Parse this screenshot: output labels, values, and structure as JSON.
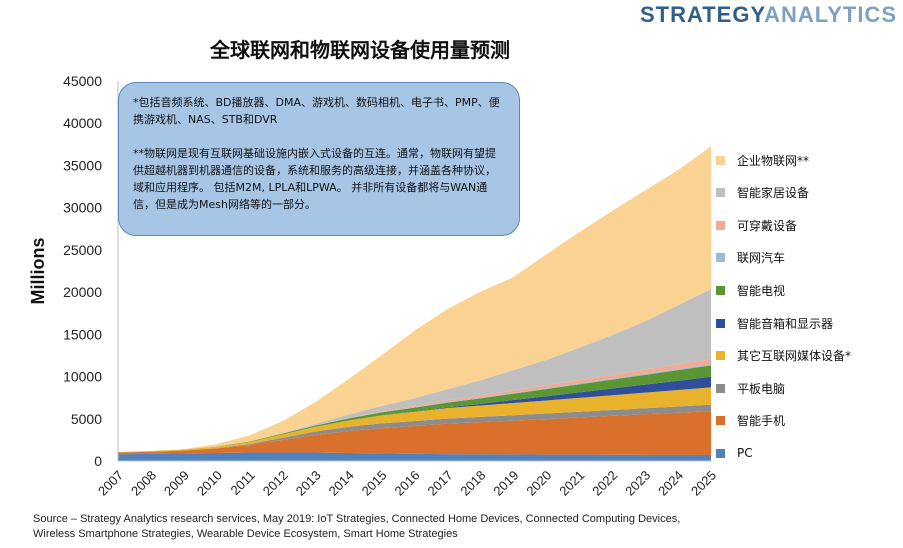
{
  "brand": {
    "part1": "STRATEGY",
    "part2": "ANALYTICS"
  },
  "chart_data": {
    "type": "area",
    "title": "全球联网和物联网设备使用量预测",
    "xlabel": "",
    "ylabel": "Millions",
    "ylim": [
      0,
      45000
    ],
    "yticks": [
      0,
      5000,
      10000,
      15000,
      20000,
      25000,
      30000,
      35000,
      40000,
      45000
    ],
    "categories": [
      "2007",
      "2008",
      "2009",
      "2010",
      "2011",
      "2012",
      "2013",
      "2014",
      "2015",
      "2016",
      "2017",
      "2018",
      "2019",
      "2020",
      "2021",
      "2022",
      "2023",
      "2024",
      "2025"
    ],
    "series": [
      {
        "name": "PC",
        "color": "#4f81bd",
        "values": [
          800,
          850,
          900,
          950,
          1000,
          1000,
          1000,
          950,
          900,
          850,
          820,
          800,
          780,
          760,
          750,
          740,
          730,
          720,
          710
        ]
      },
      {
        "name": "智能手机",
        "color": "#d9702b",
        "values": [
          200,
          250,
          350,
          550,
          900,
          1500,
          2100,
          2600,
          3000,
          3300,
          3600,
          3800,
          4000,
          4200,
          4400,
          4600,
          4800,
          5000,
          5200
        ]
      },
      {
        "name": "平板电脑",
        "color": "#8c8c8c",
        "values": [
          0,
          0,
          0,
          20,
          100,
          250,
          400,
          500,
          550,
          580,
          600,
          620,
          640,
          660,
          680,
          700,
          720,
          740,
          760
        ]
      },
      {
        "name": "其它互联网媒体设备*",
        "color": "#e8b22d",
        "values": [
          60,
          80,
          100,
          150,
          250,
          400,
          550,
          750,
          950,
          1100,
          1250,
          1350,
          1450,
          1550,
          1650,
          1750,
          1850,
          1950,
          2050
        ]
      },
      {
        "name": "智能音箱和显示器",
        "color": "#2f4f9a",
        "values": [
          0,
          0,
          0,
          0,
          0,
          0,
          0,
          0,
          10,
          40,
          100,
          200,
          350,
          500,
          650,
          800,
          950,
          1100,
          1250
        ]
      },
      {
        "name": "智能电视",
        "color": "#5c9634",
        "values": [
          0,
          0,
          10,
          30,
          60,
          100,
          150,
          250,
          350,
          450,
          550,
          650,
          750,
          850,
          950,
          1050,
          1150,
          1250,
          1350
        ]
      },
      {
        "name": "联网汽车",
        "color": "#9dbbd9",
        "values": [
          0,
          0,
          0,
          0,
          10,
          20,
          30,
          40,
          50,
          60,
          70,
          80,
          90,
          100,
          110,
          120,
          130,
          140,
          150
        ]
      },
      {
        "name": "可穿戴设备",
        "color": "#f0ab95",
        "values": [
          0,
          0,
          0,
          0,
          0,
          0,
          20,
          50,
          100,
          150,
          200,
          250,
          300,
          350,
          400,
          450,
          500,
          550,
          600
        ]
      },
      {
        "name": "智能家居设备",
        "color": "#bfbfbf",
        "values": [
          0,
          0,
          0,
          0,
          20,
          50,
          150,
          350,
          600,
          900,
          1300,
          1800,
          2400,
          3000,
          3800,
          4700,
          5700,
          7000,
          8300
        ]
      },
      {
        "name": "企业物联网**",
        "color": "#fad291",
        "values": [
          0,
          0,
          50,
          300,
          700,
          1400,
          2600,
          4200,
          6000,
          8000,
          9500,
          10500,
          11000,
          12500,
          13700,
          14700,
          15500,
          16000,
          16900
        ]
      }
    ],
    "legend_position": "right",
    "grid": false
  },
  "note": {
    "line1": "*包括音频系统、BD播放器、DMA、游戏机、数码相机、电子书、PMP、便携游戏机、NAS、STB和DVR",
    "line2": "**物联网是现有互联网基础设施内嵌入式设备的互连。通常，物联网有望提供超越机器到机器通信的设备，系统和服务的高级连接，并涵盖各种协议，域和应用程序。 包括M2M, LPLA和LPWA。 并非所有设备都将与WAN通信，但是成为Mesh网络等的一部分。"
  },
  "source": "Source – Strategy Analytics research services, May 2019: IoT Strategies, Connected Home Devices, Connected Computing Devices, Wireless Smartphone Strategies, Wearable Device Ecosystem,  Smart Home Strategies"
}
